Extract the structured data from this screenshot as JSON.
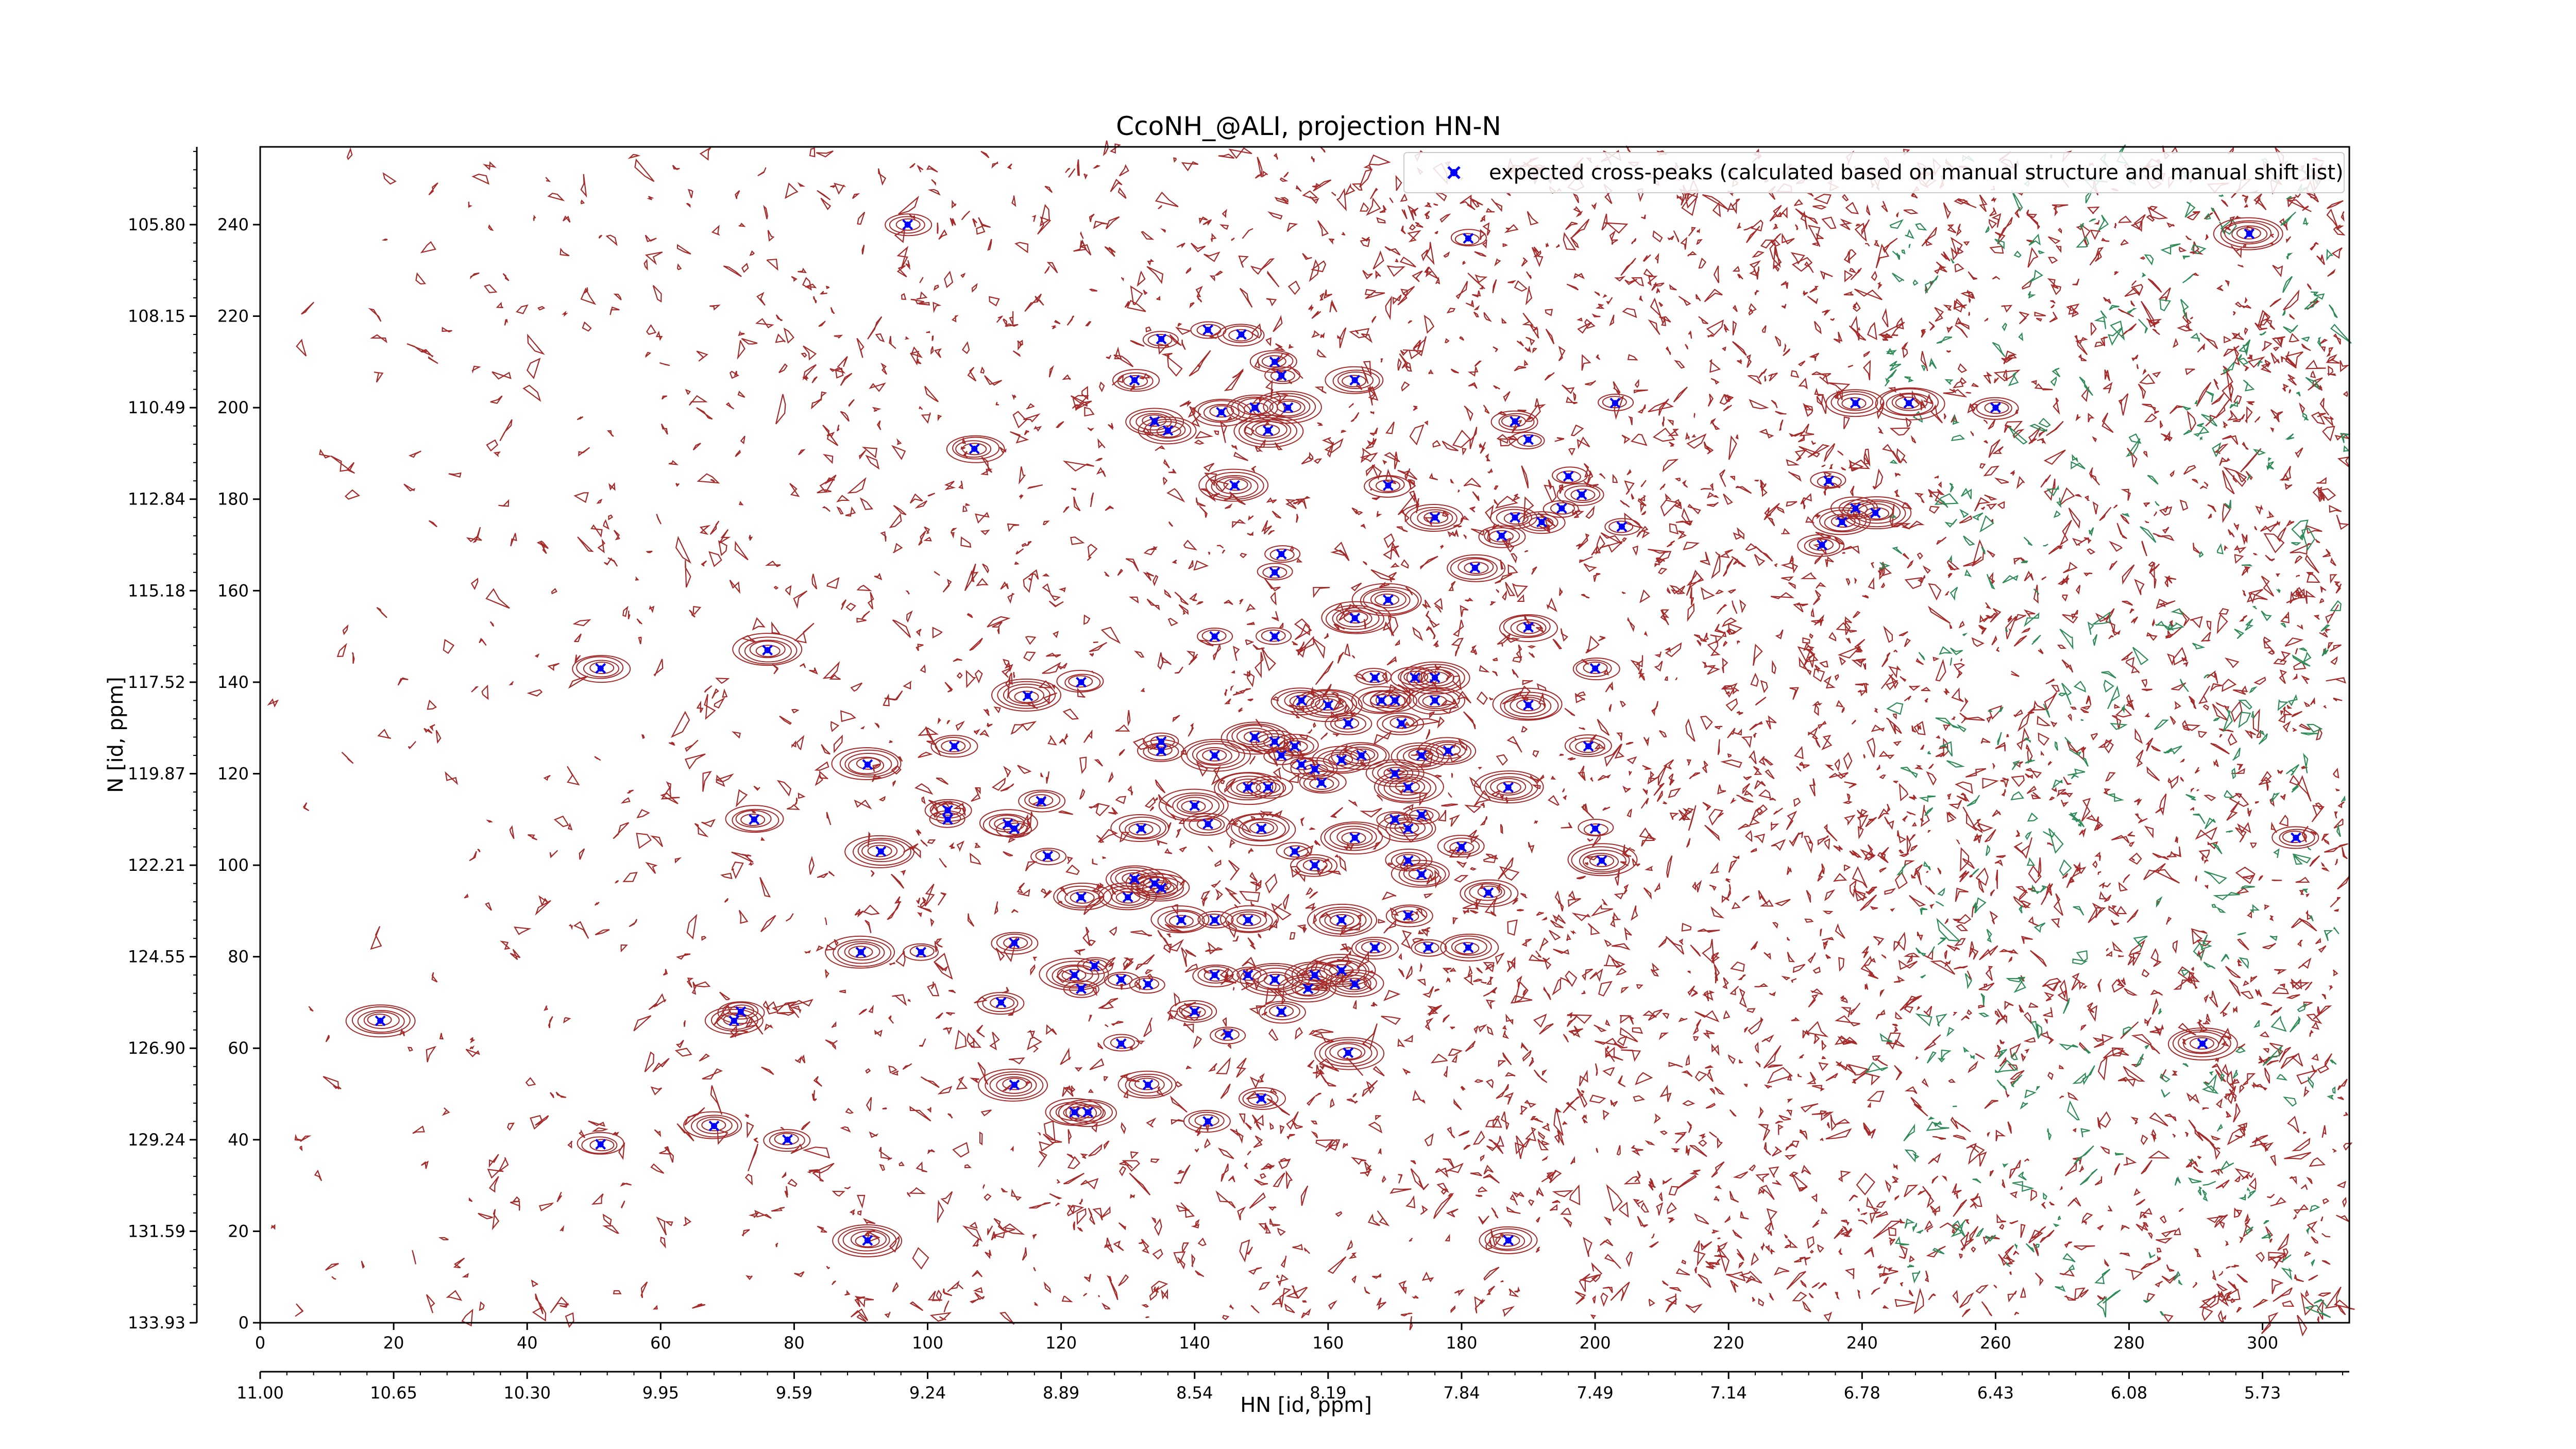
{
  "chart_data": {
    "type": "scatter",
    "title": "CcoNH_@ALI, projection HN-N",
    "xlabel": "HN [id, ppm]",
    "ylabel": "N [id, ppm]",
    "x_index_range": [
      0,
      313
    ],
    "y_index_range": [
      0,
      257
    ],
    "bottom_x_ticks": [
      "0",
      "20",
      "40",
      "60",
      "80",
      "100",
      "120",
      "140",
      "160",
      "180",
      "200",
      "220",
      "240",
      "260",
      "280",
      "300"
    ],
    "bottom_x_ppm_ticks": [
      "11.00",
      "10.65",
      "10.30",
      "9.95",
      "9.59",
      "9.24",
      "8.89",
      "8.54",
      "8.19",
      "7.84",
      "7.49",
      "7.14",
      "6.78",
      "6.43",
      "6.08",
      "5.73"
    ],
    "left_y_ticks": [
      "0",
      "20",
      "40",
      "60",
      "80",
      "100",
      "120",
      "140",
      "160",
      "180",
      "200",
      "220",
      "240"
    ],
    "left_y_ppm_ticks": [
      "133.93",
      "131.59",
      "129.24",
      "126.90",
      "124.55",
      "122.21",
      "119.87",
      "117.52",
      "115.18",
      "112.84",
      "110.49",
      "108.15",
      "105.80"
    ],
    "legend": {
      "label": "expected cross-peaks (calculated based on manual structure and manual shift list)",
      "position": "top-right"
    },
    "grid": false,
    "colors": {
      "contour_positive": "#a52a2a",
      "contour_negative": "#2e8b57",
      "peak_marker": "#0000ff"
    },
    "series": [
      {
        "name": "expected cross-peaks (calculated based on manual structure and manual shift list)",
        "points": [
          [
            97,
            240
          ],
          [
            181,
            237
          ],
          [
            298,
            238
          ],
          [
            142,
            217
          ],
          [
            135,
            215
          ],
          [
            147,
            216
          ],
          [
            152,
            210
          ],
          [
            153,
            207
          ],
          [
            131,
            206
          ],
          [
            164,
            206
          ],
          [
            134,
            197
          ],
          [
            136,
            195
          ],
          [
            144,
            199
          ],
          [
            149,
            200
          ],
          [
            151,
            195
          ],
          [
            154,
            200
          ],
          [
            188,
            197
          ],
          [
            203,
            201
          ],
          [
            239,
            201
          ],
          [
            247,
            201
          ],
          [
            260,
            200
          ],
          [
            107,
            191
          ],
          [
            146,
            183
          ],
          [
            169,
            183
          ],
          [
            190,
            193
          ],
          [
            196,
            185
          ],
          [
            195,
            178
          ],
          [
            198,
            181
          ],
          [
            188,
            176
          ],
          [
            186,
            172
          ],
          [
            192,
            175
          ],
          [
            176,
            176
          ],
          [
            204,
            174
          ],
          [
            235,
            184
          ],
          [
            239,
            178
          ],
          [
            237,
            175
          ],
          [
            242,
            177
          ],
          [
            234,
            170
          ],
          [
            153,
            168
          ],
          [
            152,
            164
          ],
          [
            182,
            165
          ],
          [
            169,
            158
          ],
          [
            164,
            154
          ],
          [
            190,
            152
          ],
          [
            143,
            150
          ],
          [
            152,
            150
          ],
          [
            76,
            147
          ],
          [
            51,
            143
          ],
          [
            167,
            141
          ],
          [
            173,
            141
          ],
          [
            176,
            141
          ],
          [
            200,
            143
          ],
          [
            115,
            137
          ],
          [
            123,
            140
          ],
          [
            156,
            136
          ],
          [
            160,
            135
          ],
          [
            163,
            131
          ],
          [
            168,
            136
          ],
          [
            170,
            136
          ],
          [
            176,
            136
          ],
          [
            171,
            131
          ],
          [
            190,
            135
          ],
          [
            135,
            127
          ],
          [
            135,
            125
          ],
          [
            104,
            126
          ],
          [
            143,
            124
          ],
          [
            149,
            128
          ],
          [
            152,
            127
          ],
          [
            153,
            124
          ],
          [
            155,
            126
          ],
          [
            156,
            122
          ],
          [
            158,
            121
          ],
          [
            162,
            123
          ],
          [
            165,
            124
          ],
          [
            170,
            120
          ],
          [
            172,
            117
          ],
          [
            174,
            124
          ],
          [
            178,
            125
          ],
          [
            199,
            126
          ],
          [
            91,
            122
          ],
          [
            148,
            117
          ],
          [
            151,
            117
          ],
          [
            159,
            118
          ],
          [
            174,
            111
          ],
          [
            187,
            117
          ],
          [
            103,
            112
          ],
          [
            103,
            110
          ],
          [
            117,
            114
          ],
          [
            112,
            109
          ],
          [
            113,
            108
          ],
          [
            74,
            110
          ],
          [
            140,
            113
          ],
          [
            142,
            109
          ],
          [
            150,
            108
          ],
          [
            155,
            103
          ],
          [
            158,
            100
          ],
          [
            164,
            106
          ],
          [
            170,
            110
          ],
          [
            172,
            108
          ],
          [
            172,
            101
          ],
          [
            174,
            98
          ],
          [
            180,
            104
          ],
          [
            184,
            94
          ],
          [
            200,
            108
          ],
          [
            201,
            101
          ],
          [
            93,
            103
          ],
          [
            118,
            102
          ],
          [
            132,
            108
          ],
          [
            131,
            97
          ],
          [
            135,
            95
          ],
          [
            134,
            96
          ],
          [
            123,
            93
          ],
          [
            130,
            93
          ],
          [
            138,
            88
          ],
          [
            143,
            88
          ],
          [
            148,
            88
          ],
          [
            162,
            88
          ],
          [
            172,
            89
          ],
          [
            175,
            82
          ],
          [
            181,
            82
          ],
          [
            113,
            83
          ],
          [
            99,
            81
          ],
          [
            125,
            78
          ],
          [
            122,
            76
          ],
          [
            123,
            73
          ],
          [
            129,
            75
          ],
          [
            133,
            74
          ],
          [
            143,
            76
          ],
          [
            148,
            76
          ],
          [
            152,
            75
          ],
          [
            153,
            68
          ],
          [
            157,
            73
          ],
          [
            158,
            76
          ],
          [
            162,
            77
          ],
          [
            164,
            74
          ],
          [
            167,
            82
          ],
          [
            140,
            68
          ],
          [
            90,
            81
          ],
          [
            18,
            66
          ],
          [
            71,
            66
          ],
          [
            72,
            68
          ],
          [
            111,
            70
          ],
          [
            145,
            63
          ],
          [
            129,
            61
          ],
          [
            163,
            59
          ],
          [
            291,
            61
          ],
          [
            305,
            106
          ],
          [
            113,
            52
          ],
          [
            133,
            52
          ],
          [
            150,
            49
          ],
          [
            122,
            46
          ],
          [
            124,
            46
          ],
          [
            142,
            44
          ],
          [
            68,
            43
          ],
          [
            79,
            40
          ],
          [
            51,
            39
          ],
          [
            91,
            18
          ],
          [
            187,
            18
          ]
        ]
      }
    ]
  }
}
